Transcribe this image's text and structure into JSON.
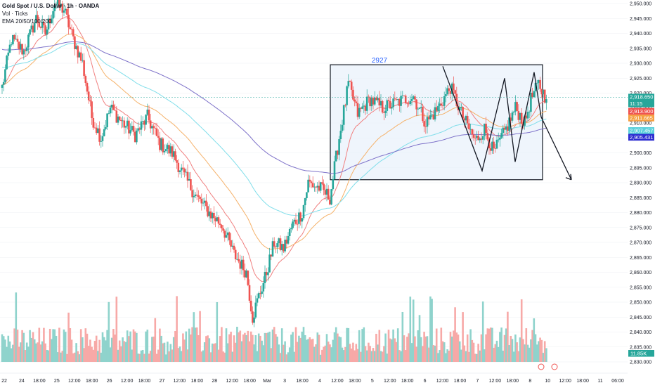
{
  "legend": {
    "symbol": "Gold Spot / U.S. Dollar · 1h · OANDA",
    "volume": "Vol · Ticks",
    "ema": "EMA 20/50/100/200"
  },
  "colors": {
    "up": "#26a69a",
    "down": "#ef5350",
    "vol_up": "#8fd3cc",
    "vol_down": "#f7a9a7",
    "ema20": "#f08080",
    "ema50": "#f5b26b",
    "ema100": "#80deea",
    "ema200": "#7e72c9",
    "box_fill": "#e8f1fb",
    "box_annotation": "#2962ff"
  },
  "chart_data": {
    "type": "candlestick",
    "y_axis": {
      "min": 2830,
      "max": 2950,
      "ticks": [
        2950,
        2945,
        2940,
        2935,
        2930,
        2925,
        2920,
        2915,
        2910,
        2905,
        2900,
        2895,
        2890,
        2885,
        2880,
        2875,
        2870,
        2865,
        2860,
        2855,
        2850,
        2845,
        2840,
        2835,
        2830
      ],
      "tick_labels": [
        "2,950.000",
        "2,945.000",
        "2,940.000",
        "2,935.000",
        "2,930.000",
        "2,925.000",
        "2,920.000",
        "2,915.000",
        "2,910.000",
        "2,905.000",
        "2,900.000",
        "2,895.000",
        "2,890.000",
        "2,885.000",
        "2,880.000",
        "2,875.000",
        "2,870.000",
        "2,865.000",
        "2,860.000",
        "2,855.000",
        "2,850.000",
        "2,845.000",
        "2,840.000",
        "2,835.000",
        "2,830.000"
      ]
    },
    "x_ticks": [
      "22",
      "24",
      "18:00",
      "25",
      "12:00",
      "18:00",
      "26",
      "12:00",
      "18:00",
      "27",
      "12:00",
      "18:00",
      "28",
      "12:00",
      "18:00",
      "Mar",
      "3",
      "18:00",
      "4",
      "12:00",
      "18:00",
      "5",
      "12:00",
      "18:00",
      "6",
      "12:00",
      "18:00",
      "7",
      "12:00",
      "18:00",
      "8",
      "10",
      "12:00",
      "18:00",
      "11",
      "06:00"
    ],
    "anchors": [
      [
        0,
        2922
      ],
      [
        6,
        2938
      ],
      [
        14,
        2934
      ],
      [
        22,
        2945
      ],
      [
        28,
        2940
      ],
      [
        34,
        2950
      ],
      [
        40,
        2948
      ],
      [
        46,
        2938
      ],
      [
        52,
        2930
      ],
      [
        58,
        2912
      ],
      [
        64,
        2905
      ],
      [
        70,
        2915
      ],
      [
        78,
        2910
      ],
      [
        86,
        2906
      ],
      [
        94,
        2912
      ],
      [
        102,
        2903
      ],
      [
        110,
        2900
      ],
      [
        118,
        2892
      ],
      [
        126,
        2885
      ],
      [
        134,
        2880
      ],
      [
        142,
        2876
      ],
      [
        150,
        2866
      ],
      [
        158,
        2860
      ],
      [
        162,
        2845
      ],
      [
        166,
        2852
      ],
      [
        170,
        2858
      ],
      [
        176,
        2870
      ],
      [
        182,
        2868
      ],
      [
        188,
        2876
      ],
      [
        194,
        2880
      ],
      [
        198,
        2890
      ],
      [
        206,
        2888
      ],
      [
        212,
        2885
      ],
      [
        218,
        2905
      ],
      [
        224,
        2923
      ],
      [
        230,
        2913
      ],
      [
        238,
        2918
      ],
      [
        246,
        2915
      ],
      [
        256,
        2917
      ],
      [
        266,
        2919
      ],
      [
        274,
        2910
      ],
      [
        282,
        2915
      ],
      [
        290,
        2922
      ],
      [
        298,
        2912
      ],
      [
        306,
        2904
      ],
      [
        312,
        2908
      ],
      [
        318,
        2900
      ],
      [
        326,
        2908
      ],
      [
        332,
        2915
      ],
      [
        338,
        2910
      ],
      [
        342,
        2918
      ],
      [
        347,
        2923
      ],
      [
        352,
        2918
      ]
    ],
    "current_price": "2,918.650",
    "current_countdown": "11:15",
    "price_tags": [
      {
        "label": "2,918.650",
        "value": 2918.65,
        "color": "#26a69a"
      },
      {
        "label": "11:15",
        "value": 2917.6,
        "color": "#26a69a"
      },
      {
        "label": "2,913.900",
        "value": 2913.9,
        "color": "#ef5350"
      },
      {
        "label": "2,911.665",
        "value": 2911.665,
        "color": "#f5a042"
      },
      {
        "label": "2,907.457",
        "value": 2907.457,
        "color": "#5bd0dc"
      },
      {
        "label": "2,905.431",
        "value": 2905.431,
        "color": "#2d2dd0"
      }
    ],
    "volume_tag": "11.85K",
    "range_box": {
      "label": "2927",
      "high": 2929.5,
      "low": 2891
    },
    "zigzag": [
      [
        2929
      ],
      [
        2894
      ],
      [
        2925
      ],
      [
        2897
      ],
      [
        2927
      ],
      [
        2912
      ]
    ]
  }
}
